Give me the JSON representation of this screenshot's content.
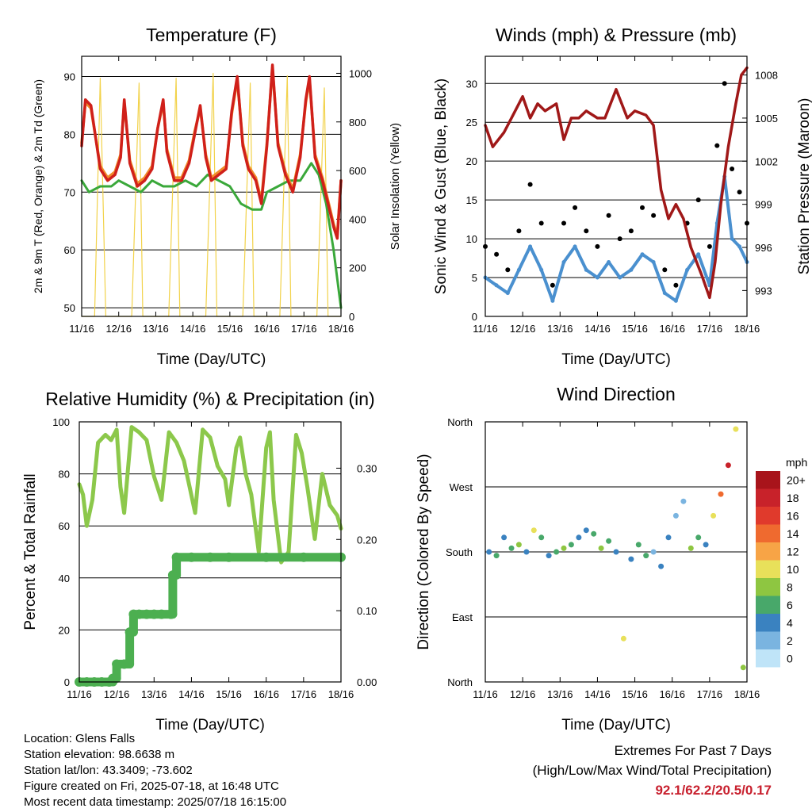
{
  "chart_data": [
    {
      "type": "line",
      "title": "Temperature (F)",
      "xlabel": "Time (Day/UTC)",
      "ylabel": "2m & 9m T (Red, Orange) & 2m Td (Green)",
      "y2label": "Solar Insolation (Yellow)",
      "x_ticks": [
        "11/16",
        "12/16",
        "13/16",
        "14/16",
        "15/16",
        "16/16",
        "17/16",
        "18/16"
      ],
      "y_ticks": [
        50,
        60,
        70,
        80,
        90
      ],
      "y2_ticks": [
        0,
        200,
        400,
        600,
        800,
        1000
      ],
      "ylim": [
        48.5,
        93.5
      ],
      "y2lim": [
        0,
        1070
      ],
      "xlim": [
        0,
        7
      ],
      "grid": true,
      "series": [
        {
          "name": "2m T",
          "color": "#d0201a",
          "x": [
            0,
            0.1,
            0.25,
            0.5,
            0.7,
            0.9,
            1.05,
            1.15,
            1.3,
            1.5,
            1.7,
            1.9,
            2.05,
            2.2,
            2.3,
            2.5,
            2.7,
            2.9,
            3.05,
            3.2,
            3.35,
            3.5,
            3.7,
            3.9,
            4.05,
            4.2,
            4.35,
            4.5,
            4.7,
            4.85,
            5,
            5.15,
            5.3,
            5.5,
            5.7,
            5.9,
            6.05,
            6.15,
            6.3,
            6.5,
            6.65,
            6.8,
            6.9,
            7
          ],
          "values": [
            78,
            86,
            85,
            74,
            72,
            73,
            76,
            86,
            75,
            71,
            72,
            74,
            81,
            86,
            77,
            72,
            72,
            75,
            80,
            85,
            76,
            72,
            73,
            74,
            84,
            90,
            78,
            74,
            72,
            68,
            78,
            92,
            78,
            73,
            70,
            76,
            86,
            90,
            76,
            72,
            68,
            64,
            62,
            72
          ]
        },
        {
          "name": "9m T",
          "color": "#f08c2a",
          "x": [
            0,
            0.1,
            0.25,
            0.5,
            0.7,
            0.9,
            1.05,
            1.15,
            1.3,
            1.5,
            1.7,
            1.9,
            2.05,
            2.2,
            2.3,
            2.5,
            2.7,
            2.9,
            3.05,
            3.2,
            3.35,
            3.5,
            3.7,
            3.9,
            4.05,
            4.2,
            4.35,
            4.5,
            4.7,
            4.85,
            5,
            5.15,
            5.3,
            5.5,
            5.7,
            5.9,
            6.05,
            6.15,
            6.3,
            6.5,
            6.65,
            6.8,
            6.9,
            7
          ],
          "values": [
            78.5,
            85.5,
            84.5,
            74.5,
            72.5,
            73.5,
            76.5,
            85.5,
            75.5,
            71.5,
            72.5,
            74.5,
            81,
            85.5,
            77.5,
            72.5,
            72.5,
            75.5,
            80.5,
            84.5,
            76.5,
            72.5,
            73.5,
            74.5,
            83.5,
            89.5,
            78.5,
            74.5,
            72.5,
            68.5,
            78.5,
            91.5,
            78.5,
            73.5,
            70.5,
            76.5,
            85.5,
            89.5,
            76.5,
            72.5,
            68.5,
            64.5,
            62.5,
            72
          ]
        },
        {
          "name": "2m Td",
          "color": "#3aa83a",
          "x": [
            0,
            0.2,
            0.5,
            0.8,
            1.0,
            1.3,
            1.6,
            1.9,
            2.2,
            2.5,
            2.8,
            3.1,
            3.4,
            3.7,
            4.0,
            4.3,
            4.6,
            4.85,
            5.0,
            5.3,
            5.6,
            5.9,
            6.2,
            6.4,
            6.6,
            6.8,
            6.9,
            7
          ],
          "values": [
            72,
            70,
            71,
            71,
            72,
            71,
            70,
            72,
            71,
            71,
            72,
            71,
            73,
            72,
            71,
            68,
            67,
            67,
            70,
            71,
            72,
            72,
            75,
            73,
            68,
            60,
            55,
            50
          ]
        },
        {
          "name": "Solar Insolation",
          "color": "#f2d24a",
          "axis": "y2",
          "x": [
            0,
            0.35,
            0.5,
            0.65,
            0.85,
            1.0,
            1.35,
            1.55,
            1.65,
            1.85,
            2.0,
            2.35,
            2.55,
            2.65,
            2.85,
            3.0,
            3.35,
            3.55,
            3.65,
            3.85,
            4.0,
            4.35,
            4.55,
            4.65,
            4.85,
            5.0,
            5.35,
            5.55,
            5.65,
            5.85,
            6.0,
            6.35,
            6.55,
            6.65,
            6.85,
            7.0
          ],
          "values": [
            0,
            0,
            980,
            0,
            0,
            0,
            0,
            960,
            0,
            0,
            0,
            0,
            980,
            0,
            0,
            0,
            0,
            1000,
            0,
            0,
            0,
            0,
            960,
            0,
            0,
            0,
            0,
            990,
            0,
            0,
            0,
            0,
            940,
            0,
            0,
            0
          ]
        }
      ]
    },
    {
      "type": "scatter",
      "title": "Winds (mph) & Pressure (mb)",
      "xlabel": "Time (Day/UTC)",
      "ylabel": "Sonic Wind & Gust (Blue, Black)",
      "y2label": "Station Pressure (Maroon)",
      "x_ticks": [
        "11/16",
        "12/16",
        "13/16",
        "14/16",
        "15/16",
        "16/16",
        "17/16",
        "18/16"
      ],
      "y_ticks": [
        0,
        5,
        10,
        15,
        20,
        25,
        30
      ],
      "y2_ticks": [
        993,
        996,
        999,
        1002,
        1005,
        1008
      ],
      "ylim": [
        0,
        33.5
      ],
      "y2lim": [
        991.2,
        1009.3
      ],
      "xlim": [
        0,
        7
      ],
      "grid": true,
      "series": [
        {
          "name": "Sonic Wind",
          "color": "#4a90cf",
          "x": [
            0,
            0.3,
            0.6,
            0.9,
            1.2,
            1.5,
            1.8,
            2.1,
            2.4,
            2.7,
            3.0,
            3.3,
            3.6,
            3.9,
            4.2,
            4.5,
            4.8,
            5.1,
            5.4,
            5.7,
            6.0,
            6.2,
            6.4,
            6.6,
            6.8,
            7.0
          ],
          "values": [
            5,
            4,
            3,
            6,
            9,
            6,
            2,
            7,
            9,
            6,
            5,
            7,
            5,
            6,
            8,
            7,
            3,
            2,
            6,
            8,
            4,
            12,
            18,
            10,
            9,
            7
          ]
        },
        {
          "name": "Gust",
          "color": "#000000",
          "x": [
            0,
            0.3,
            0.6,
            0.9,
            1.2,
            1.5,
            1.8,
            2.1,
            2.4,
            2.7,
            3.0,
            3.3,
            3.6,
            3.9,
            4.2,
            4.5,
            4.8,
            5.1,
            5.4,
            5.7,
            6.0,
            6.2,
            6.4,
            6.6,
            6.8,
            7.0
          ],
          "values": [
            9,
            8,
            6,
            11,
            17,
            12,
            4,
            12,
            14,
            11,
            9,
            13,
            10,
            11,
            14,
            13,
            6,
            4,
            12,
            15,
            9,
            22,
            30,
            19,
            16,
            12
          ]
        },
        {
          "name": "Station Pressure",
          "color": "#a01818",
          "axis": "y2",
          "x": [
            0,
            0.2,
            0.5,
            0.7,
            1.0,
            1.2,
            1.4,
            1.6,
            1.9,
            2.1,
            2.3,
            2.5,
            2.7,
            3.0,
            3.2,
            3.5,
            3.8,
            4.0,
            4.3,
            4.5,
            4.7,
            4.9,
            5.1,
            5.3,
            5.5,
            5.8,
            6.0,
            6.15,
            6.3,
            6.5,
            6.7,
            6.85,
            7.0
          ],
          "values": [
            1004.5,
            1003,
            1004,
            1005,
            1006.5,
            1005,
            1006,
            1005.5,
            1006,
            1003.5,
            1005,
            1005,
            1005.5,
            1005,
            1005,
            1007,
            1005,
            1005.5,
            1005.2,
            1004.5,
            1000,
            998,
            999,
            998,
            996,
            994,
            992.5,
            995,
            999,
            1003,
            1006,
            1008,
            1008.5
          ]
        }
      ]
    },
    {
      "type": "line",
      "title": "Relative Humidity (%) & Precipitation (in)",
      "xlabel": "Time (Day/UTC)",
      "ylabel": "Percent & Total Rainfall",
      "x_ticks": [
        "11/16",
        "12/16",
        "13/16",
        "14/16",
        "15/16",
        "16/16",
        "17/16",
        "18/16"
      ],
      "y_ticks": [
        0,
        20,
        40,
        60,
        80,
        100
      ],
      "y2_ticks": [
        "0.00",
        "0.10",
        "0.20",
        "0.30"
      ],
      "ylim": [
        0,
        100
      ],
      "y2lim": [
        0,
        0.365
      ],
      "xlim": [
        0,
        7
      ],
      "grid": true,
      "series": [
        {
          "name": "Relative Humidity",
          "color": "#8cc84b",
          "x": [
            0,
            0.1,
            0.2,
            0.35,
            0.5,
            0.7,
            0.85,
            1.0,
            1.1,
            1.2,
            1.4,
            1.6,
            1.8,
            2.0,
            2.2,
            2.4,
            2.6,
            2.8,
            2.95,
            3.1,
            3.3,
            3.5,
            3.7,
            3.9,
            4.0,
            4.2,
            4.3,
            4.45,
            4.6,
            4.8,
            5.0,
            5.1,
            5.2,
            5.4,
            5.6,
            5.8,
            5.95,
            6.1,
            6.3,
            6.5,
            6.7,
            6.9,
            7.0
          ],
          "values": [
            76,
            72,
            60,
            70,
            92,
            95,
            93,
            97,
            75,
            65,
            98,
            96,
            93,
            79,
            70,
            96,
            92,
            85,
            75,
            65,
            97,
            94,
            83,
            78,
            68,
            90,
            94,
            80,
            72,
            50,
            90,
            96,
            70,
            46,
            50,
            95,
            88,
            75,
            55,
            80,
            68,
            64,
            59
          ]
        },
        {
          "name": "Total Rainfall",
          "color": "#4caf50",
          "axis": "y2",
          "x": [
            0,
            0.2,
            0.4,
            0.6,
            0.8,
            0.9,
            1.0,
            1.2,
            1.35,
            1.45,
            1.6,
            1.8,
            2.0,
            2.2,
            2.45,
            2.5,
            2.6,
            3.0,
            3.5,
            4.0,
            5.0,
            6.0,
            7.0
          ],
          "values": [
            0,
            0,
            0,
            0,
            0,
            0.005,
            0.025,
            0.025,
            0.07,
            0.095,
            0.095,
            0.095,
            0.095,
            0.095,
            0.095,
            0.15,
            0.175,
            0.175,
            0.175,
            0.175,
            0.175,
            0.175,
            0.175
          ]
        }
      ]
    },
    {
      "type": "scatter",
      "title": "Wind Direction",
      "xlabel": "Time (Day/UTC)",
      "ylabel": "Direction (Colored By Speed)",
      "x_ticks": [
        "11/16",
        "12/16",
        "13/16",
        "14/16",
        "15/16",
        "16/16",
        "17/16",
        "18/16"
      ],
      "y_ticks": [
        "North",
        "East",
        "South",
        "West",
        "North"
      ],
      "ylim": [
        0,
        360
      ],
      "xlim": [
        0,
        7
      ],
      "grid": true,
      "colorbar": {
        "title": "mph",
        "labels": [
          "20+",
          "18",
          "16",
          "14",
          "12",
          "10",
          "8",
          "6",
          "4",
          "2",
          "0"
        ],
        "colors": [
          "#a8141b",
          "#c8222a",
          "#e03a2c",
          "#ef6a2f",
          "#f7a446",
          "#e8e05a",
          "#8ec641",
          "#48a86a",
          "#3a82c0",
          "#7ab4e0",
          "#bfe4f8"
        ]
      },
      "series": [
        {
          "name": "Direction",
          "x": [
            0.1,
            0.3,
            0.5,
            0.7,
            0.9,
            1.1,
            1.3,
            1.5,
            1.7,
            1.9,
            2.1,
            2.3,
            2.5,
            2.7,
            2.9,
            3.1,
            3.3,
            3.5,
            3.7,
            3.9,
            4.1,
            4.3,
            4.5,
            4.7,
            4.9,
            5.1,
            5.3,
            5.5,
            5.7,
            5.9,
            6.1,
            6.3,
            6.5,
            6.7,
            6.9
          ],
          "values": [
            180,
            175,
            200,
            185,
            190,
            180,
            210,
            200,
            175,
            180,
            185,
            190,
            200,
            210,
            205,
            185,
            195,
            180,
            60,
            170,
            190,
            175,
            180,
            160,
            200,
            230,
            250,
            185,
            200,
            190,
            230,
            260,
            300,
            350,
            20
          ],
          "speeds": [
            4,
            6,
            3,
            5,
            8,
            4,
            9,
            5,
            3,
            6,
            8,
            5,
            4,
            3,
            6,
            7,
            5,
            4,
            9,
            3,
            5,
            6,
            2,
            3,
            4,
            1,
            2,
            7,
            5,
            4,
            9,
            14,
            17,
            10,
            7
          ]
        }
      ]
    }
  ],
  "footer": {
    "location": "Location: Glens Falls",
    "elevation": "Station elevation: 98.6638 m",
    "latlon": "Station lat/lon: 43.3409; -73.602",
    "created": "Figure created on Fri, 2025-07-18, at 16:48 UTC",
    "recent": "Most recent data timestamp: 2025/07/18 16:15:00"
  },
  "extremes": {
    "line1": "Extremes For Past 7 Days",
    "line2": "(High/Low/Max Wind/Total Precipitation)",
    "values": "92.1/62.2/20.5/0.17"
  }
}
